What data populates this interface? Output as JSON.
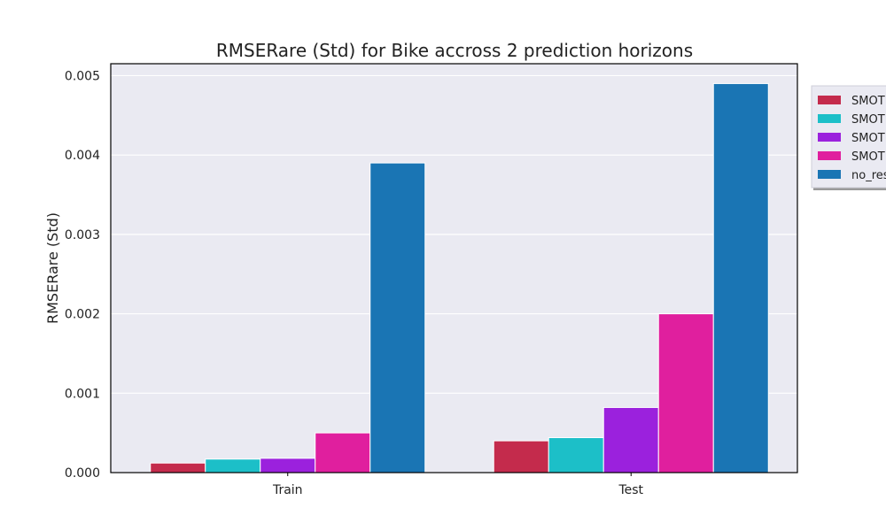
{
  "chart_data": {
    "type": "bar",
    "title": "RMSERare (Std) for Bike accross 2 prediction horizons",
    "xlabel": "",
    "ylabel": "RMSERare (Std)",
    "categories": [
      "Train",
      "Test"
    ],
    "ylim": [
      0,
      0.00515
    ],
    "yticks": [
      "0.000",
      "0.001",
      "0.002",
      "0.003",
      "0.004",
      "0.005"
    ],
    "ytick_values": [
      0,
      0.001,
      0.002,
      0.003,
      0.004,
      0.005
    ],
    "grid": true,
    "legend_position": "outside right, top (clipped)",
    "series": [
      {
        "name": "SMOT",
        "color": "#c42b4c",
        "values": [
          0.00012,
          0.0004
        ]
      },
      {
        "name": "SMOT",
        "color": "#1cbfc8",
        "values": [
          0.00017,
          0.00044
        ]
      },
      {
        "name": "SMOT",
        "color": "#9b21dd",
        "values": [
          0.00018,
          0.00082
        ]
      },
      {
        "name": "SMOT",
        "color": "#e01f9e",
        "values": [
          0.0005,
          0.002
        ]
      },
      {
        "name": "no_res",
        "color": "#1a75b4",
        "values": [
          0.0039,
          0.0049
        ]
      }
    ],
    "colors": {
      "plot_bg": "#eaeaf2",
      "grid": "#ffffff",
      "frame": "#000000"
    }
  }
}
